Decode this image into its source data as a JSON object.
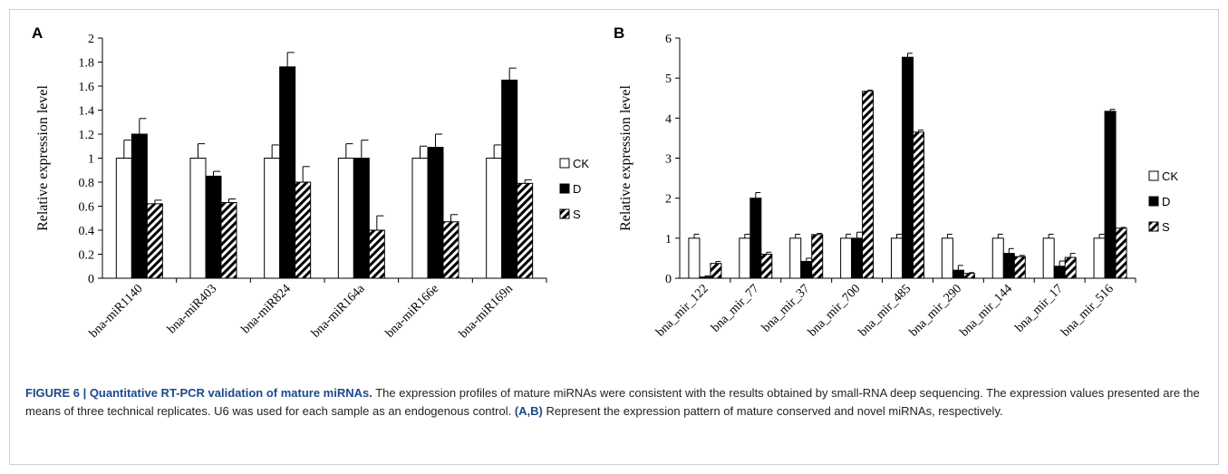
{
  "caption": {
    "label": "FIGURE 6 | Quantitative RT-PCR validation of mature miRNAs.",
    "text": " The expression profiles of mature miRNAs were consistent with the results obtained by small-RNA deep sequencing. The expression values presented are the means of three technical replicates. U6 was used for each sample as an endogenous control. ",
    "panels_ref": "(A,B)",
    "panels_text": " Represent the expression pattern of mature conserved and novel miRNAs, respectively."
  },
  "colors": {
    "CK": "#ffffff",
    "D": "#000000",
    "S": "hatched",
    "stroke": "#000000"
  },
  "chart_data": [
    {
      "panel": "A",
      "type": "bar",
      "ylabel": "Relative expression level",
      "ylim": [
        0,
        2
      ],
      "yticks": [
        "0",
        "0.2",
        "0.4",
        "0.6",
        "0.8",
        "1",
        "1.2",
        "1.4",
        "1.6",
        "1.8",
        "2"
      ],
      "ytick_values": [
        0,
        0.2,
        0.4,
        0.6,
        0.8,
        1,
        1.2,
        1.4,
        1.6,
        1.8,
        2
      ],
      "grid": false,
      "legend_placement": "right",
      "categories": [
        "bna-miR1140",
        "bna-miR403",
        "bna-miR824",
        "bna-miR164a",
        "bna-miR166e",
        "bna-miR169n"
      ],
      "series": [
        {
          "name": "CK",
          "values": [
            1,
            1,
            1,
            1,
            1,
            1
          ],
          "errors": [
            0.15,
            0.12,
            0.11,
            0.12,
            0.1,
            0.11
          ]
        },
        {
          "name": "D",
          "values": [
            1.2,
            0.85,
            1.76,
            1.0,
            1.09,
            1.65
          ],
          "errors": [
            0.13,
            0.04,
            0.12,
            0.15,
            0.11,
            0.1
          ]
        },
        {
          "name": "S",
          "values": [
            0.62,
            0.63,
            0.8,
            0.4,
            0.47,
            0.79
          ],
          "errors": [
            0.03,
            0.03,
            0.13,
            0.12,
            0.06,
            0.03
          ]
        }
      ]
    },
    {
      "panel": "B",
      "type": "bar",
      "ylabel": "Relative expression level",
      "ylim": [
        0,
        6
      ],
      "yticks": [
        "0",
        "1",
        "2",
        "3",
        "4",
        "5",
        "6"
      ],
      "ytick_values": [
        0,
        1,
        2,
        3,
        4,
        5,
        6
      ],
      "grid": false,
      "legend_placement": "right",
      "categories": [
        "bna_mir_122",
        "bna_mir_77",
        "bna_mir_37",
        "bna_mir_700",
        "bna_mir_485",
        "bna_mir_290",
        "bna_mir_144",
        "bna_mir_17",
        "bna_mir_516"
      ],
      "series": [
        {
          "name": "CK",
          "values": [
            1,
            1,
            1,
            1,
            1,
            1,
            1,
            1,
            1
          ],
          "errors": [
            0.1,
            0.1,
            0.1,
            0.1,
            0.1,
            0.1,
            0.1,
            0.1,
            0.1
          ]
        },
        {
          "name": "D",
          "values": [
            0.03,
            2.0,
            0.42,
            1.0,
            5.52,
            0.2,
            0.62,
            0.3,
            4.17
          ],
          "errors": [
            0.03,
            0.14,
            0.08,
            0.15,
            0.1,
            0.12,
            0.12,
            0.13,
            0.05
          ]
        },
        {
          "name": "S",
          "values": [
            0.37,
            0.6,
            1.09,
            4.67,
            3.65,
            0.12,
            0.54,
            0.52,
            1.25
          ],
          "errors": [
            0.05,
            0.05,
            0.03,
            0.03,
            0.05,
            0.02,
            0.03,
            0.1,
            0.02
          ]
        }
      ]
    }
  ]
}
